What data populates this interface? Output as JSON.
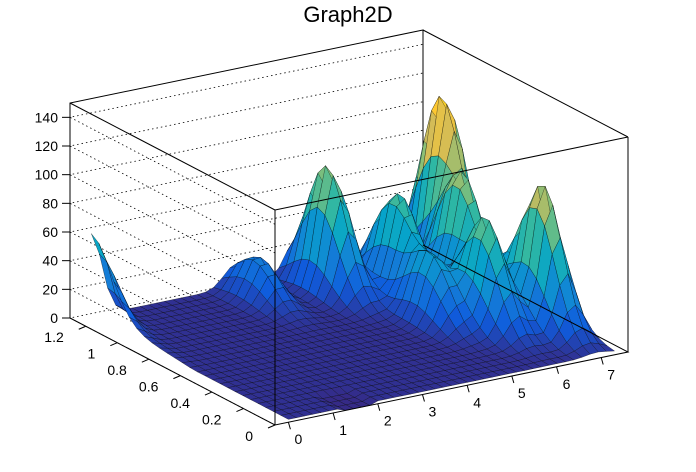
{
  "chart_data": {
    "type": "surface",
    "title": "Graph2D",
    "xlim": [
      -0.3,
      7.6
    ],
    "ylim": [
      0,
      1.3
    ],
    "zlim": [
      0,
      150
    ],
    "x_ticks": [
      "0",
      "1",
      "2",
      "3",
      "4",
      "5",
      "6",
      "7"
    ],
    "y_ticks": [
      "0",
      "0.2",
      "0.4",
      "0.6",
      "0.8",
      "1",
      "1.2"
    ],
    "z_ticks": [
      "0",
      "20",
      "40",
      "60",
      "80",
      "100",
      "120",
      "140"
    ],
    "grid": true,
    "colormap": [
      "#352a87",
      "#0f5cdd",
      "#1481d6",
      "#06a4ca",
      "#2eb7a4",
      "#87bf77",
      "#d1bb59",
      "#fec832",
      "#f9fb0e"
    ],
    "peaks": [
      {
        "x": 0.0,
        "y": 1.25,
        "z": 50
      },
      {
        "x": 3.2,
        "y": 1.1,
        "z": 30
      },
      {
        "x": 4.6,
        "y": 1.05,
        "z": 88
      },
      {
        "x": 5.3,
        "y": 0.6,
        "z": 45
      },
      {
        "x": 6.0,
        "y": 0.45,
        "z": 75
      },
      {
        "x": 6.5,
        "y": 0.75,
        "z": 85
      },
      {
        "x": 6.9,
        "y": 0.35,
        "z": 100
      },
      {
        "x": 7.0,
        "y": 1.0,
        "z": 125
      },
      {
        "x": 5.6,
        "y": 0.9,
        "z": 70
      }
    ]
  }
}
